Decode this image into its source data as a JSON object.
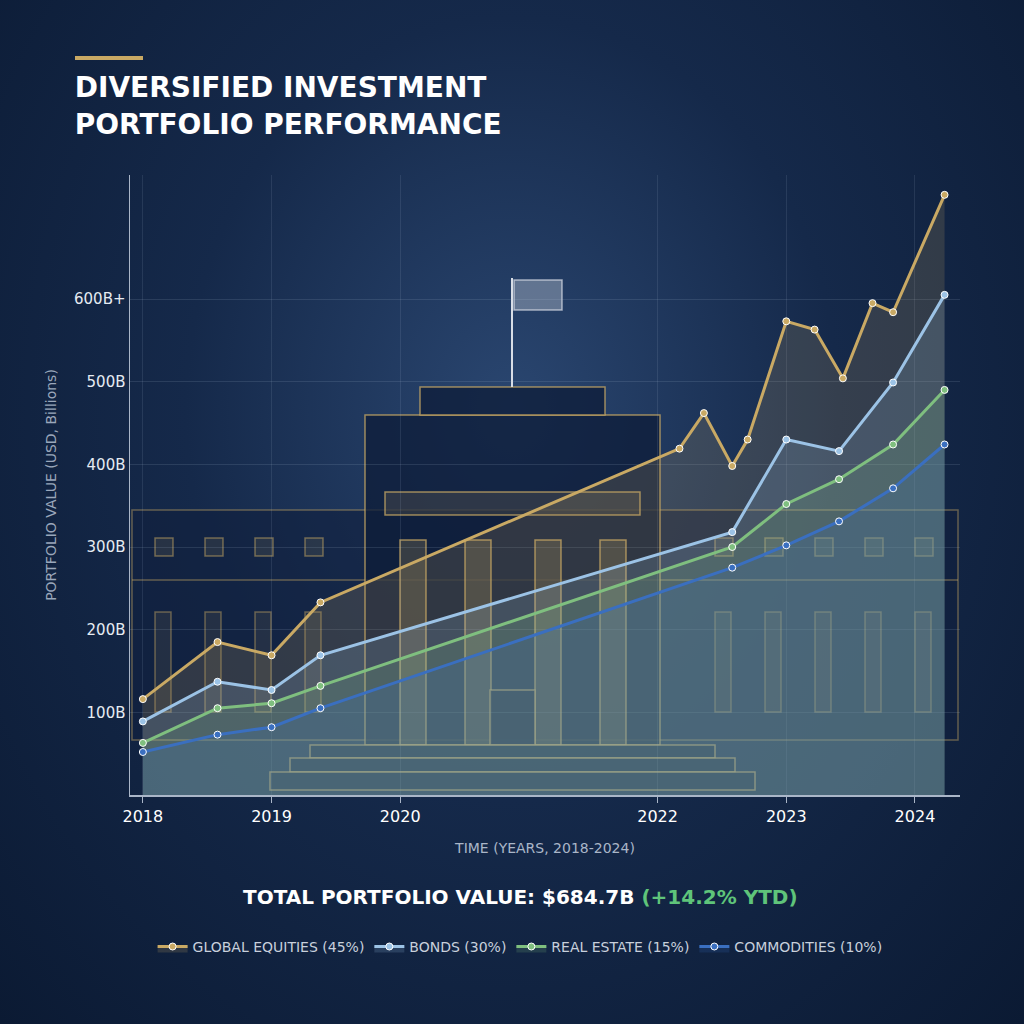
{
  "chart_data": {
    "type": "line",
    "title": "DIVERSIFIED INVESTMENT PORTFOLIO PERFORMANCE",
    "x_label": "TIME (YEARS, 2018-2024)",
    "y_label": "PORTFOLIO VALUE (USD, Billions)",
    "annotations": [
      {
        "text": "TOTAL PORTFOLIO VALUE: $684.7B",
        "color": "#ffffff"
      },
      {
        "text": "(+14.2% YTD)",
        "color": "#5fc47a"
      }
    ],
    "xlim": [
      2017.9,
      2024.35
    ],
    "xticks": [
      2018,
      2019,
      2020,
      2022,
      2023,
      2024
    ],
    "ylim": [
      0,
      750
    ],
    "yticks": [
      {
        "value": 100,
        "label": "100B"
      },
      {
        "value": 200,
        "label": "200B"
      },
      {
        "value": 300,
        "label": "300B"
      },
      {
        "value": 400,
        "label": "400B"
      },
      {
        "value": 500,
        "label": "500B"
      },
      {
        "value": 600,
        "label": "600B+"
      }
    ],
    "grid": true,
    "legend": "bottom",
    "marker": "circle",
    "series": [
      {
        "name": "GLOBAL EQUITIES (45%)",
        "color": "#c9a964",
        "x": [
          2018,
          2018.58,
          2019,
          2019.38,
          2022.17,
          2022.36,
          2022.58,
          2022.7,
          2023,
          2023.22,
          2023.44,
          2023.67,
          2023.83,
          2024.23
        ],
        "values": [
          116,
          185,
          169,
          233,
          419,
          462,
          398,
          430,
          573,
          563,
          504,
          595,
          584,
          726
        ]
      },
      {
        "name": "BONDS (30%)",
        "color": "#9cc3e6",
        "x": [
          2018,
          2018.58,
          2019,
          2019.38,
          2022.58,
          2023,
          2023.41,
          2023.83,
          2024.23
        ],
        "values": [
          89,
          137,
          127,
          169,
          318,
          430,
          416,
          499,
          605
        ]
      },
      {
        "name": "REAL ESTATE (15%)",
        "color": "#7fbf7f",
        "x": [
          2018,
          2018.58,
          2019,
          2019.38,
          2022.58,
          2023,
          2023.41,
          2023.83,
          2024.23
        ],
        "values": [
          63,
          105,
          111,
          132,
          300,
          352,
          382,
          424,
          490
        ]
      },
      {
        "name": "COMMODITIES (10%)",
        "color": "#3a6fc0",
        "x": [
          2018,
          2018.58,
          2019,
          2019.38,
          2022.58,
          2023,
          2023.41,
          2023.83,
          2024.23
        ],
        "values": [
          52,
          73,
          82,
          105,
          275,
          302,
          331,
          371,
          424
        ]
      }
    ]
  }
}
